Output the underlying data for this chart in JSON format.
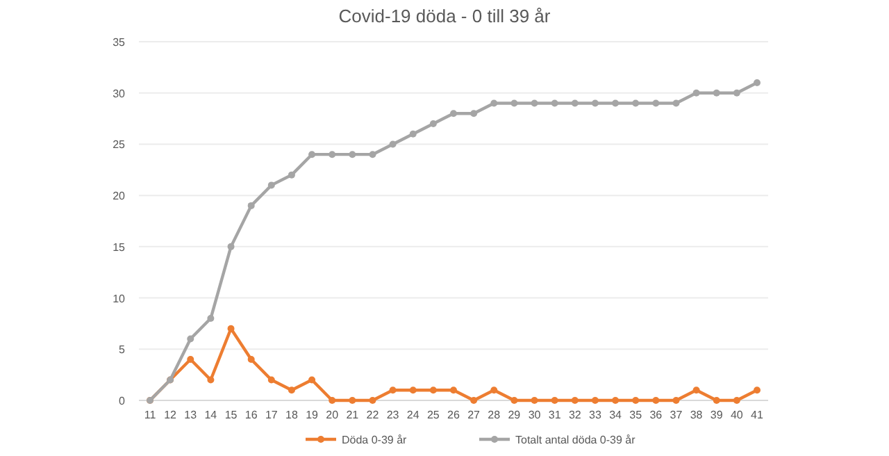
{
  "chart_data": {
    "type": "line",
    "title": "Covid-19 döda - 0 till 39 år",
    "categories": [
      "11",
      "12",
      "13",
      "14",
      "15",
      "16",
      "17",
      "18",
      "19",
      "20",
      "21",
      "22",
      "23",
      "24",
      "25",
      "26",
      "27",
      "28",
      "29",
      "30",
      "31",
      "32",
      "33",
      "34",
      "35",
      "36",
      "37",
      "38",
      "39",
      "40",
      "41"
    ],
    "series": [
      {
        "name": "Döda 0-39 år",
        "color": "#ed7d31",
        "values": [
          0,
          2,
          4,
          2,
          7,
          4,
          2,
          1,
          2,
          0,
          0,
          0,
          1,
          1,
          1,
          1,
          0,
          1,
          0,
          0,
          0,
          0,
          0,
          0,
          0,
          0,
          0,
          1,
          0,
          0,
          1
        ]
      },
      {
        "name": "Totalt antal döda 0-39 år",
        "color": "#a5a5a5",
        "values": [
          0,
          2,
          6,
          8,
          15,
          19,
          21,
          22,
          24,
          24,
          24,
          24,
          25,
          26,
          27,
          28,
          28,
          29,
          29,
          29,
          29,
          29,
          29,
          29,
          29,
          29,
          29,
          30,
          30,
          30,
          31
        ]
      }
    ],
    "ylim": [
      0,
      35
    ],
    "yticks": [
      0,
      5,
      10,
      15,
      20,
      25,
      30,
      35
    ],
    "grid": "y",
    "legend": "bottom",
    "marker": "circle",
    "line_style": "solid"
  }
}
